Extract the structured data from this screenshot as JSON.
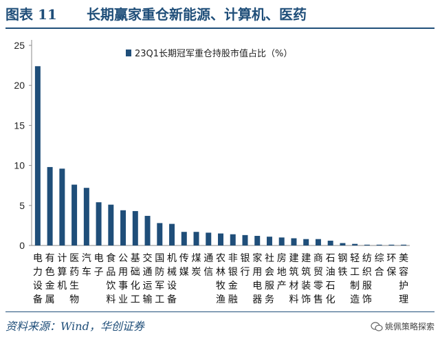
{
  "figure": {
    "number": "图表 11",
    "title": "长期赢家重仓新能源、计算机、医药"
  },
  "chart_data": {
    "type": "bar",
    "legend": "23Q1长期冠军重仓持股市值占比（%）",
    "ylim": [
      0,
      25
    ],
    "yticks": [
      0,
      5,
      10,
      15,
      20,
      25
    ],
    "categories": [
      "电力设备",
      "有色金属",
      "计算机",
      "医药生物",
      "汽车",
      "电子",
      "食品饮料",
      "公用事业",
      "基础化工",
      "交通运输",
      "国防军工",
      "机械设备",
      "传媒",
      "煤炭",
      "通信",
      "农林牧渔",
      "非银金融",
      "银行",
      "家用电器",
      "社会服务",
      "房地产",
      "建筑材料",
      "建筑装饰",
      "商贸零售",
      "石油石化",
      "钢铁",
      "轻工制造",
      "纺织服饰",
      "综合",
      "环保",
      "美容护理"
    ],
    "values": [
      22.4,
      9.8,
      9.6,
      7.6,
      7.2,
      5.4,
      5.1,
      4.4,
      4.3,
      3.7,
      2.8,
      2.7,
      1.7,
      1.7,
      1.6,
      1.5,
      1.4,
      1.3,
      1.2,
      1.1,
      1.0,
      0.9,
      0.8,
      0.8,
      0.6,
      0.3,
      0.2,
      0.1,
      0.1,
      0.1,
      0.1
    ],
    "bar_color": "#1f4e79"
  },
  "source": "资料来源：Wind，华创证券",
  "watermark": "姚佩策略探索"
}
